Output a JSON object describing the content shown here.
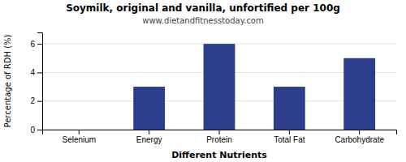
{
  "chart_data": {
    "type": "bar",
    "title": "Soymilk, original and vanilla, unfortified per 100g",
    "subtitle": "www.dietandfitnesstoday.com",
    "xlabel": "Different Nutrients",
    "ylabel": "Percentage of RDH (%)",
    "categories": [
      "Selenium",
      "Energy",
      "Protein",
      "Total Fat",
      "Carbohydrate"
    ],
    "values": [
      0,
      3.0,
      6.0,
      3.0,
      5.0
    ],
    "color": "#2d3f8c",
    "ylim": [
      0,
      6.8
    ],
    "yticks": [
      0,
      2,
      4,
      6
    ],
    "grid": true
  }
}
